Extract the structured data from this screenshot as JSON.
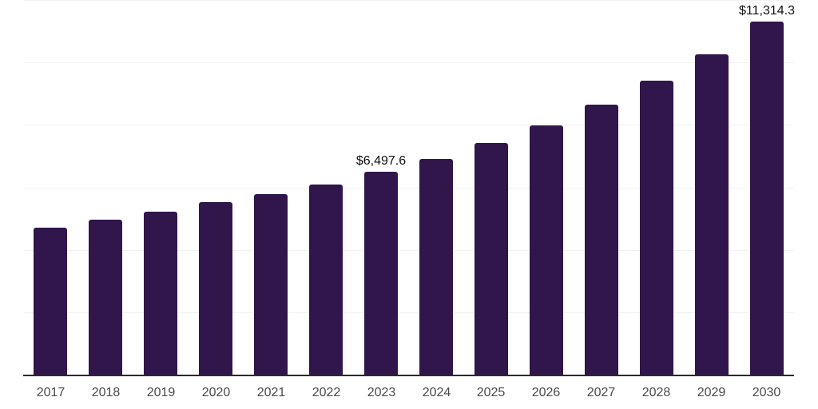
{
  "chart_data": {
    "type": "bar",
    "title": "",
    "xlabel": "",
    "ylabel": "",
    "categories": [
      "2017",
      "2018",
      "2019",
      "2020",
      "2021",
      "2022",
      "2023",
      "2024",
      "2025",
      "2026",
      "2027",
      "2028",
      "2029",
      "2030"
    ],
    "values": [
      4710,
      4965,
      5220,
      5530,
      5790,
      6090,
      6497.6,
      6910,
      7420,
      7990,
      8650,
      9420,
      10260,
      11314.3
    ],
    "value_labels": [
      {
        "category": "2023",
        "text": "$6,497.6"
      },
      {
        "category": "2030",
        "text": "$11,314.3"
      }
    ],
    "ylim": [
      0,
      12000
    ],
    "ytick_interval": 2000,
    "y_axis_tick_labels_visible": false,
    "grid": "horizontal",
    "legend": "none",
    "colors": {
      "bar": "#30164a",
      "gridline": "#f2f2f2",
      "axis_line": "#2b2b2b",
      "x_tick_label": "#4a4a4a",
      "value_label": "#111111",
      "background": "#ffffff"
    }
  }
}
